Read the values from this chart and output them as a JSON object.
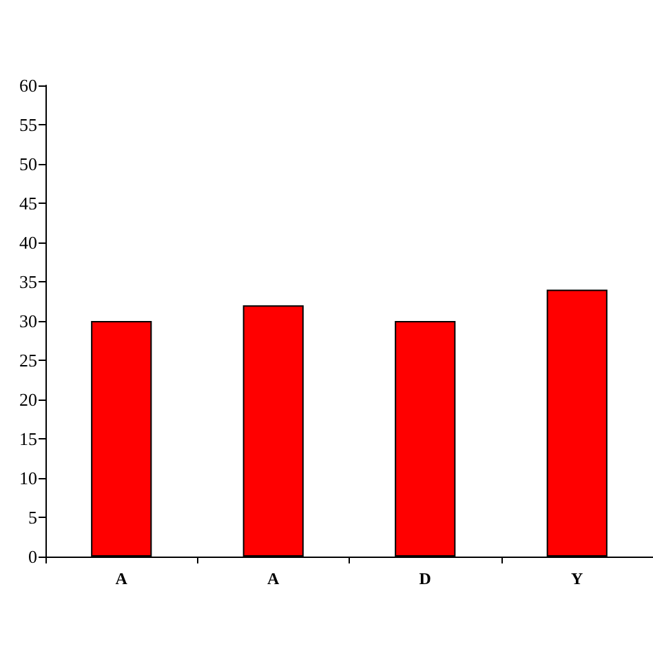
{
  "chart_data": {
    "type": "bar",
    "categories": [
      "A",
      "A",
      "D",
      "Y"
    ],
    "values": [
      30,
      32,
      30,
      34
    ],
    "color": "#ff0000",
    "ylim": [
      0,
      60
    ],
    "yticks": [
      0,
      5,
      10,
      15,
      20,
      25,
      30,
      35,
      40,
      45,
      50,
      55,
      60
    ],
    "grid": false
  }
}
